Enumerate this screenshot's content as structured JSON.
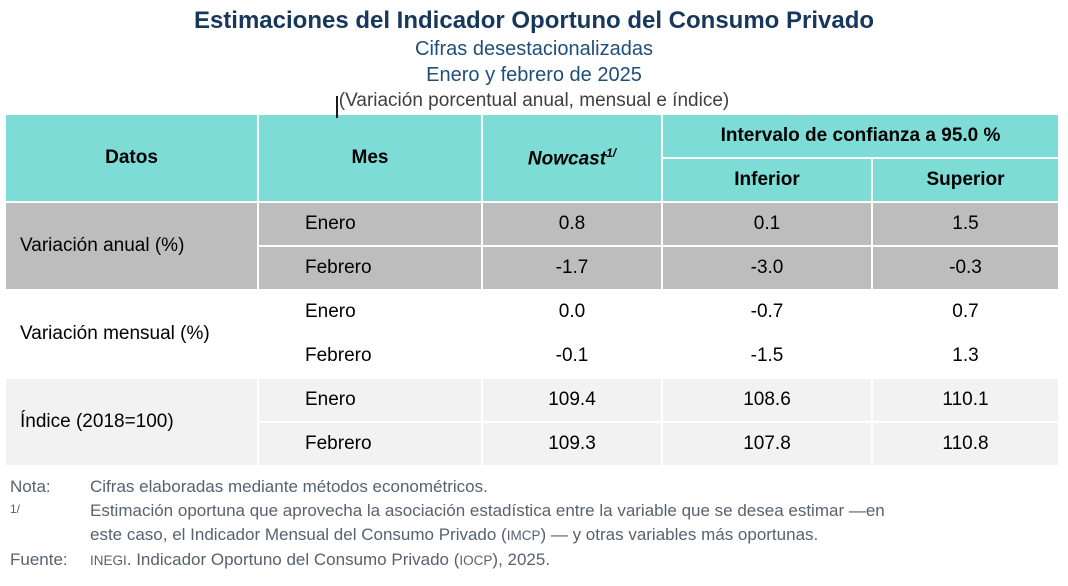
{
  "header": {
    "title": "Estimaciones del Indicador Oportuno del Consumo Privado",
    "subtitle1": "Cifras desestacionalizadas",
    "subtitle2": "Enero y febrero de 2025",
    "caption": "(Variación porcentual anual, mensual e índice)"
  },
  "colors": {
    "header_teal": "#7EDCD7",
    "group_gray": "#BDBDBD",
    "group_white": "#FFFFFF",
    "group_light_gray": "#F2F2F2",
    "title_navy": "#17375D",
    "subtitle_blue": "#1F4E79",
    "notes_slate": "#57626E"
  },
  "table": {
    "headers": {
      "datos": "Datos",
      "mes": "Mes",
      "nowcast": "Nowcast",
      "nowcast_footnote": "1/",
      "confidence": "Intervalo de confianza a 95.0 %",
      "inferior": "Inferior",
      "superior": "Superior"
    },
    "groups": [
      {
        "label": "Variación anual (%)",
        "rows": [
          {
            "mes": "Enero",
            "nowcast": "0.8",
            "inferior": "0.1",
            "superior": "1.5"
          },
          {
            "mes": "Febrero",
            "nowcast": "-1.7",
            "inferior": "-3.0",
            "superior": "-0.3"
          }
        ]
      },
      {
        "label": "Variación mensual (%)",
        "rows": [
          {
            "mes": "Enero",
            "nowcast": "0.0",
            "inferior": "-0.7",
            "superior": "0.7"
          },
          {
            "mes": "Febrero",
            "nowcast": "-0.1",
            "inferior": "-1.5",
            "superior": "1.3"
          }
        ]
      },
      {
        "label": "Índice (2018=100)",
        "rows": [
          {
            "mes": "Enero",
            "nowcast": "109.4",
            "inferior": "108.6",
            "superior": "110.1"
          },
          {
            "mes": "Febrero",
            "nowcast": "109.3",
            "inferior": "107.8",
            "superior": "110.8"
          }
        ]
      }
    ]
  },
  "notes": {
    "nota_label": "Nota:",
    "nota_text": "Cifras elaboradas mediante métodos econométricos.",
    "fn1_label": "1/",
    "fn1_line1": "Estimación oportuna que aprovecha la asociación estadística entre la variable que se desea estimar —en",
    "fn1_line2_pre": "este caso, el Indicador Mensual del Consumo Privado (",
    "fn1_acronym": "IMCP",
    "fn1_line2_post": ") — y otras variables más oportunas.",
    "fuente_label": "Fuente:",
    "fuente_acronym1": "INEGI",
    "fuente_mid": ". Indicador Oportuno del Consumo Privado (",
    "fuente_acronym2": "IOCP",
    "fuente_end": "), 2025."
  }
}
